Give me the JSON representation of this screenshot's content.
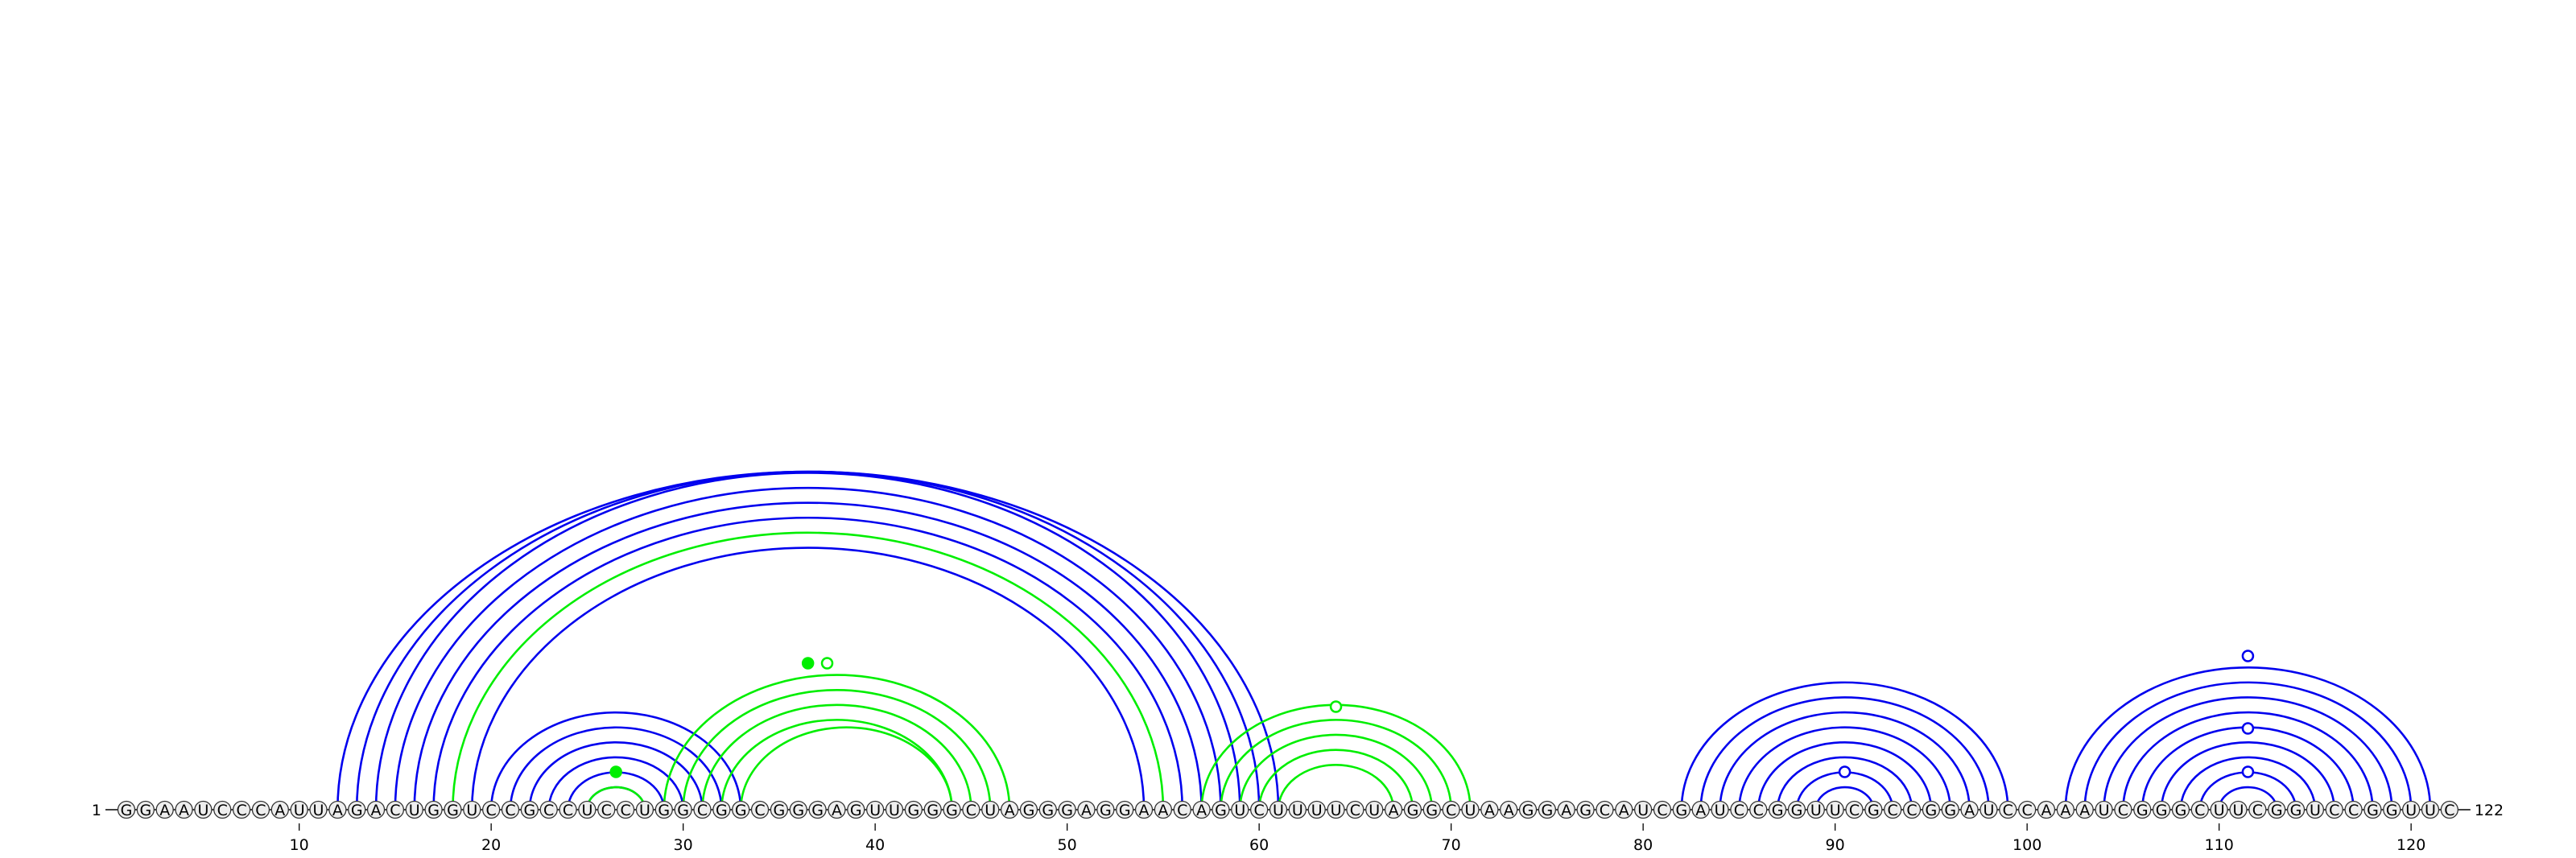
{
  "sequence": "GGAAUCCCAUUAGACUGGUCCGCCUCCUGGCGGCGGGAGUUGGGCUAGGGAGGAACAGUCUUUUCUAGGCUAAGGAGCAUCGAUCCGGUUCGCCGGAUCCAAAUCGGGCUUCGGUCCGGUUC",
  "start_label": "1",
  "end_label": "122",
  "tick_labels": [
    "10",
    "20",
    "30",
    "40",
    "50",
    "60",
    "70",
    "80",
    "90",
    "100",
    "110",
    "120"
  ],
  "colors": {
    "reference": "#0000ee",
    "predicted": "#00ee00",
    "nucleotide_fill": "#eeeeee",
    "nucleotide_stroke": "#333333",
    "backbone": "#000000"
  },
  "arc_groups": [
    {
      "color": "#0000ee",
      "pairs": [
        [
          12,
          61
        ],
        [
          13,
          60
        ],
        [
          14,
          59
        ],
        [
          15,
          58
        ],
        [
          16,
          57
        ],
        [
          17,
          56
        ],
        [
          19,
          54
        ],
        [
          20,
          33
        ],
        [
          21,
          32
        ],
        [
          22,
          31
        ],
        [
          23,
          30
        ],
        [
          24,
          29
        ],
        [
          25,
          28
        ],
        [
          82,
          99
        ],
        [
          83,
          98
        ],
        [
          84,
          97
        ],
        [
          85,
          96
        ],
        [
          86,
          95
        ],
        [
          87,
          94
        ],
        [
          88,
          93
        ],
        [
          89,
          92
        ],
        [
          102,
          121
        ],
        [
          103,
          120
        ],
        [
          104,
          119
        ],
        [
          105,
          118
        ],
        [
          106,
          117
        ],
        [
          107,
          116
        ],
        [
          108,
          115
        ],
        [
          109,
          114
        ],
        [
          110,
          113
        ]
      ]
    },
    {
      "color": "#00ee00",
      "pairs": [
        [
          18,
          55
        ],
        [
          25,
          28
        ],
        [
          29,
          47
        ],
        [
          30,
          46
        ],
        [
          31,
          45
        ],
        [
          32,
          44
        ],
        [
          33,
          44
        ],
        [
          57,
          71
        ],
        [
          58,
          70
        ],
        [
          59,
          69
        ],
        [
          60,
          68
        ],
        [
          61,
          67
        ]
      ]
    }
  ],
  "markers": [
    {
      "pos": 36.5,
      "level": 18,
      "color": "#00ee00",
      "filled": true
    },
    {
      "pos": 26.5,
      "level": 3,
      "color": "#00ee00",
      "filled": true
    },
    {
      "pos": 37.5,
      "level": 18,
      "color": "#00ee00",
      "filled": false
    },
    {
      "pos": 64,
      "level": 12,
      "color": "#00ee00",
      "filled": false
    },
    {
      "pos": 90.5,
      "level": 3,
      "color": "#0000ee",
      "filled": false
    },
    {
      "pos": 111.5,
      "level": 3,
      "color": "#0000ee",
      "filled": false
    },
    {
      "pos": 111.5,
      "level": 9,
      "color": "#0000ee",
      "filled": false
    },
    {
      "pos": 111.5,
      "level": 19,
      "color": "#0000ee",
      "filled": false
    }
  ]
}
